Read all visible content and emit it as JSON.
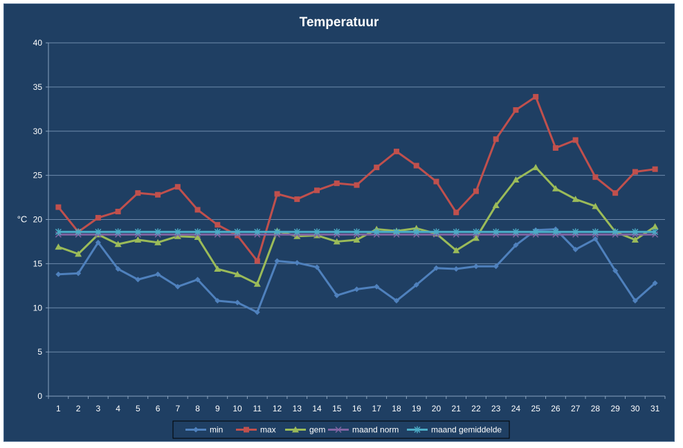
{
  "chart_data": {
    "type": "line",
    "title": "Temperatuur",
    "xlabel": "",
    "ylabel": "°C",
    "ylim": [
      0,
      40
    ],
    "yticks": [
      0,
      5,
      10,
      15,
      20,
      25,
      30,
      35,
      40
    ],
    "categories": [
      "1",
      "2",
      "3",
      "4",
      "5",
      "6",
      "7",
      "8",
      "9",
      "10",
      "11",
      "12",
      "13",
      "14",
      "15",
      "16",
      "17",
      "18",
      "19",
      "20",
      "21",
      "22",
      "23",
      "24",
      "25",
      "26",
      "27",
      "28",
      "29",
      "30",
      "31"
    ],
    "grid": "horizontal",
    "legend_position": "bottom",
    "series": [
      {
        "name": "min",
        "color": "#4f81bd",
        "marker": "diamond",
        "values": [
          13.8,
          13.9,
          17.4,
          14.4,
          13.2,
          13.8,
          12.4,
          13.2,
          10.8,
          10.6,
          9.5,
          15.3,
          15.1,
          14.6,
          11.4,
          12.1,
          12.4,
          10.8,
          12.6,
          14.5,
          14.4,
          14.7,
          14.7,
          17.1,
          18.8,
          18.9,
          16.6,
          17.8,
          14.2,
          10.8,
          12.8
        ]
      },
      {
        "name": "max",
        "color": "#c0504d",
        "marker": "square",
        "values": [
          21.4,
          18.6,
          20.2,
          20.9,
          23.0,
          22.8,
          23.7,
          21.1,
          19.4,
          18.2,
          15.3,
          22.9,
          22.3,
          23.3,
          24.1,
          23.9,
          25.9,
          27.7,
          26.1,
          24.3,
          20.8,
          23.2,
          29.1,
          32.4,
          33.9,
          28.1,
          29.0,
          24.8,
          23.0,
          25.4,
          25.7
        ]
      },
      {
        "name": "gem",
        "color": "#9bbb59",
        "marker": "triangle",
        "values": [
          16.9,
          16.1,
          18.3,
          17.2,
          17.7,
          17.4,
          18.1,
          18.0,
          14.4,
          13.8,
          12.7,
          18.7,
          18.1,
          18.2,
          17.5,
          17.7,
          18.9,
          18.7,
          19.0,
          18.4,
          16.5,
          17.9,
          21.6,
          24.5,
          25.9,
          23.5,
          22.3,
          21.5,
          18.6,
          17.7,
          19.2
        ]
      },
      {
        "name": "maand norm",
        "color": "#8064a2",
        "marker": "x",
        "values": [
          18.3,
          18.3,
          18.3,
          18.3,
          18.3,
          18.3,
          18.3,
          18.3,
          18.3,
          18.3,
          18.3,
          18.3,
          18.3,
          18.3,
          18.3,
          18.3,
          18.3,
          18.3,
          18.3,
          18.3,
          18.3,
          18.3,
          18.3,
          18.3,
          18.3,
          18.3,
          18.3,
          18.3,
          18.3,
          18.3,
          18.3
        ]
      },
      {
        "name": "maand gemiddelde",
        "color": "#4bacc6",
        "marker": "star",
        "values": [
          18.6,
          18.6,
          18.6,
          18.6,
          18.6,
          18.6,
          18.6,
          18.6,
          18.6,
          18.6,
          18.6,
          18.6,
          18.6,
          18.6,
          18.6,
          18.6,
          18.6,
          18.6,
          18.6,
          18.6,
          18.6,
          18.6,
          18.6,
          18.6,
          18.6,
          18.6,
          18.6,
          18.6,
          18.6,
          18.6,
          18.6
        ]
      }
    ]
  }
}
